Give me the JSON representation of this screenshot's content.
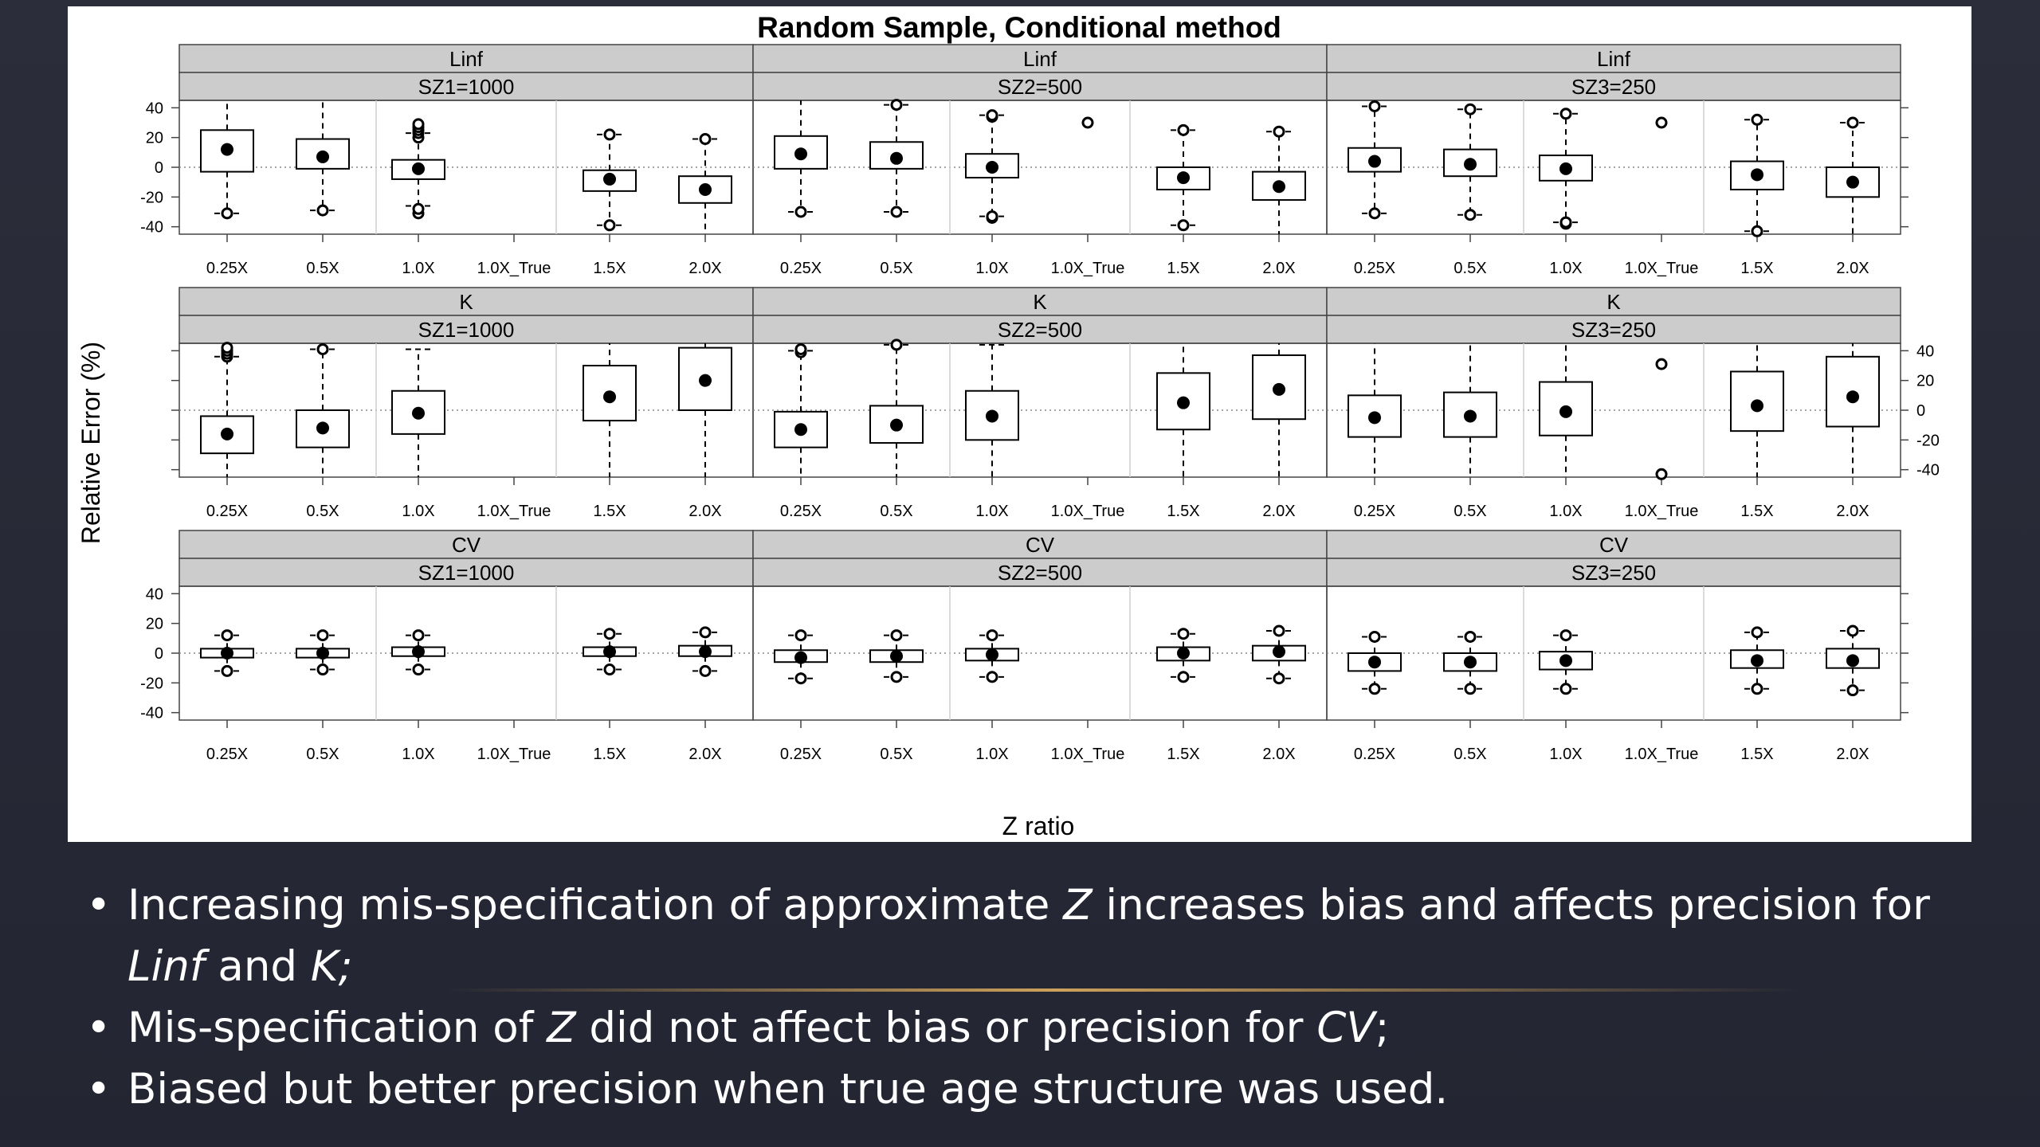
{
  "chart_data": {
    "type": "boxplot",
    "title": "Random Sample, Conditional method",
    "xlabel": "Z ratio",
    "ylabel": "Relative Error (%)",
    "ylim": [
      -45,
      45
    ],
    "yticks": [
      -40,
      -20,
      0,
      20,
      40
    ],
    "categories": [
      "0.25X",
      "0.5X",
      "1.0X",
      "1.0X_True",
      "1.5X",
      "2.0X"
    ],
    "box_fields": [
      "whisker_low",
      "q1",
      "median",
      "q3",
      "whisker_high"
    ],
    "panels": [
      {
        "parameter": "Linf",
        "sample_size": "SZ1=1000",
        "boxes": [
          {
            "category": "0.25X",
            "stats": [
              -31,
              -3,
              12,
              25,
              53
            ],
            "outliers": [
              -31
            ]
          },
          {
            "category": "0.5X",
            "stats": [
              -29,
              -1,
              7,
              19,
              50
            ],
            "outliers": [
              -29
            ]
          },
          {
            "category": "1.0X",
            "stats": [
              -26,
              -8,
              -1,
              5,
              23
            ],
            "outliers": [
              -31,
              -28,
              20,
              23,
              25,
              27,
              29
            ]
          },
          {
            "category": "1.0X_True",
            "stats": null,
            "outliers": []
          },
          {
            "category": "1.5X",
            "stats": [
              -39,
              -16,
              -8,
              -2,
              22
            ],
            "outliers": [
              -39,
              22
            ]
          },
          {
            "category": "2.0X",
            "stats": [
              -52,
              -24,
              -15,
              -6,
              19
            ],
            "outliers": [
              19
            ]
          }
        ]
      },
      {
        "parameter": "Linf",
        "sample_size": "SZ2=500",
        "boxes": [
          {
            "category": "0.25X",
            "stats": [
              -30,
              -1,
              9,
              21,
              52
            ],
            "outliers": [
              -30
            ]
          },
          {
            "category": "0.5X",
            "stats": [
              -30,
              -1,
              6,
              17,
              42
            ],
            "outliers": [
              -30,
              42
            ]
          },
          {
            "category": "1.0X",
            "stats": [
              -33,
              -7,
              0,
              9,
              35
            ],
            "outliers": [
              -34,
              -33,
              34,
              35
            ]
          },
          {
            "category": "1.0X_True",
            "stats": null,
            "outliers": [
              30
            ]
          },
          {
            "category": "1.5X",
            "stats": [
              -39,
              -15,
              -7,
              0,
              25
            ],
            "outliers": [
              -39,
              25
            ]
          },
          {
            "category": "2.0X",
            "stats": [
              -50,
              -22,
              -13,
              -3,
              24
            ],
            "outliers": [
              24
            ]
          }
        ]
      },
      {
        "parameter": "Linf",
        "sample_size": "SZ3=250",
        "boxes": [
          {
            "category": "0.25X",
            "stats": [
              -31,
              -3,
              4,
              13,
              41
            ],
            "outliers": [
              -31,
              41
            ]
          },
          {
            "category": "0.5X",
            "stats": [
              -32,
              -6,
              2,
              12,
              39
            ],
            "outliers": [
              -32,
              39
            ]
          },
          {
            "category": "1.0X",
            "stats": [
              -37,
              -9,
              -1,
              8,
              36
            ],
            "outliers": [
              -38,
              -37,
              36
            ]
          },
          {
            "category": "1.0X_True",
            "stats": null,
            "outliers": [
              30
            ]
          },
          {
            "category": "1.5X",
            "stats": [
              -43,
              -15,
              -5,
              4,
              32
            ],
            "outliers": [
              -43,
              32
            ]
          },
          {
            "category": "2.0X",
            "stats": [
              -50,
              -20,
              -10,
              0,
              30
            ],
            "outliers": [
              30
            ]
          }
        ]
      },
      {
        "parameter": "K",
        "sample_size": "SZ1=1000",
        "boxes": [
          {
            "category": "0.25X",
            "stats": [
              -55,
              -29,
              -16,
              -4,
              36
            ],
            "outliers": [
              36,
              38,
              40,
              42
            ]
          },
          {
            "category": "0.5X",
            "stats": [
              -55,
              -25,
              -12,
              0,
              41
            ],
            "outliers": [
              41
            ]
          },
          {
            "category": "1.0X",
            "stats": [
              -55,
              -16,
              -2,
              13,
              41
            ],
            "outliers": []
          },
          {
            "category": "1.5X",
            "stats": [
              -55,
              -7,
              9,
              30,
              55
            ],
            "outliers": []
          },
          {
            "category": "1.0X_True",
            "stats": null,
            "outliers": []
          },
          {
            "category": "2.0X",
            "stats": [
              -55,
              0,
              20,
              42,
              55
            ],
            "outliers": []
          }
        ]
      },
      {
        "parameter": "K",
        "sample_size": "SZ2=500",
        "boxes": [
          {
            "category": "0.25X",
            "stats": [
              -55,
              -25,
              -13,
              -1,
              40
            ],
            "outliers": [
              39,
              41
            ]
          },
          {
            "category": "0.5X",
            "stats": [
              -55,
              -22,
              -10,
              3,
              44
            ],
            "outliers": [
              44
            ]
          },
          {
            "category": "1.0X",
            "stats": [
              -55,
              -20,
              -4,
              13,
              44
            ],
            "outliers": []
          },
          {
            "category": "1.0X_True",
            "stats": null,
            "outliers": []
          },
          {
            "category": "1.5X",
            "stats": [
              -55,
              -13,
              5,
              25,
              55
            ],
            "outliers": []
          },
          {
            "category": "2.0X",
            "stats": [
              -55,
              -6,
              14,
              37,
              55
            ],
            "outliers": []
          }
        ]
      },
      {
        "parameter": "K",
        "sample_size": "SZ3=250",
        "boxes": [
          {
            "category": "0.25X",
            "stats": [
              -55,
              -18,
              -5,
              10,
              45
            ],
            "outliers": []
          },
          {
            "category": "0.5X",
            "stats": [
              -55,
              -18,
              -4,
              12,
              45
            ],
            "outliers": []
          },
          {
            "category": "1.0X",
            "stats": [
              -55,
              -17,
              -1,
              19,
              45
            ],
            "outliers": []
          },
          {
            "category": "1.0X_True",
            "stats": null,
            "outliers": [
              31,
              -43
            ]
          },
          {
            "category": "1.5X",
            "stats": [
              -55,
              -14,
              3,
              26,
              55
            ],
            "outliers": []
          },
          {
            "category": "2.0X",
            "stats": [
              -55,
              -11,
              9,
              36,
              55
            ],
            "outliers": []
          }
        ]
      },
      {
        "parameter": "CV",
        "sample_size": "SZ1=1000",
        "boxes": [
          {
            "category": "0.25X",
            "stats": [
              -12,
              -3,
              0,
              3,
              12
            ],
            "outliers": [
              -12,
              12
            ]
          },
          {
            "category": "0.5X",
            "stats": [
              -11,
              -3,
              0,
              3,
              12
            ],
            "outliers": [
              -11,
              12
            ]
          },
          {
            "category": "1.0X",
            "stats": [
              -11,
              -2,
              1,
              4,
              12
            ],
            "outliers": [
              -11,
              12
            ]
          },
          {
            "category": "1.0X_True",
            "stats": null,
            "outliers": []
          },
          {
            "category": "1.5X",
            "stats": [
              -11,
              -2,
              1,
              4,
              13
            ],
            "outliers": [
              -11,
              13
            ]
          },
          {
            "category": "2.0X",
            "stats": [
              -12,
              -2,
              1,
              5,
              14
            ],
            "outliers": [
              -12,
              14
            ]
          }
        ]
      },
      {
        "parameter": "CV",
        "sample_size": "SZ2=500",
        "boxes": [
          {
            "category": "0.25X",
            "stats": [
              -17,
              -6,
              -3,
              2,
              12
            ],
            "outliers": [
              -17,
              12
            ]
          },
          {
            "category": "0.5X",
            "stats": [
              -16,
              -6,
              -2,
              2,
              12
            ],
            "outliers": [
              -16,
              12
            ]
          },
          {
            "category": "1.0X",
            "stats": [
              -16,
              -5,
              -1,
              3,
              12
            ],
            "outliers": [
              -16,
              12
            ]
          },
          {
            "category": "1.0X_True",
            "stats": null,
            "outliers": []
          },
          {
            "category": "1.5X",
            "stats": [
              -16,
              -5,
              0,
              4,
              13
            ],
            "outliers": [
              -16,
              13
            ]
          },
          {
            "category": "2.0X",
            "stats": [
              -17,
              -5,
              1,
              5,
              15
            ],
            "outliers": [
              -17,
              15
            ]
          }
        ]
      },
      {
        "parameter": "CV",
        "sample_size": "SZ3=250",
        "boxes": [
          {
            "category": "0.25X",
            "stats": [
              -24,
              -12,
              -6,
              0,
              11
            ],
            "outliers": [
              -24,
              11
            ]
          },
          {
            "category": "0.5X",
            "stats": [
              -24,
              -12,
              -6,
              0,
              11
            ],
            "outliers": [
              -24,
              11
            ]
          },
          {
            "category": "1.0X",
            "stats": [
              -24,
              -11,
              -5,
              1,
              12
            ],
            "outliers": [
              -24,
              12
            ]
          },
          {
            "category": "1.0X_True",
            "stats": null,
            "outliers": []
          },
          {
            "category": "1.5X",
            "stats": [
              -24,
              -10,
              -5,
              2,
              14
            ],
            "outliers": [
              -24,
              14
            ]
          },
          {
            "category": "2.0X",
            "stats": [
              -25,
              -10,
              -5,
              3,
              15
            ],
            "outliers": [
              -25,
              15
            ]
          }
        ]
      }
    ]
  },
  "bullets": [
    {
      "parts": [
        {
          "t": "Increasing mis-specification of approximate "
        },
        {
          "t": "Z",
          "i": true
        },
        {
          "t": " increases bias and affects precision for "
        },
        {
          "t": "Linf",
          "i": true
        },
        {
          "t": " and "
        },
        {
          "t": "K;",
          "i": true
        }
      ]
    },
    {
      "parts": [
        {
          "t": "Mis-specification of "
        },
        {
          "t": "Z",
          "i": true
        },
        {
          "t": " did not affect bias or precision for "
        },
        {
          "t": "CV",
          "i": true
        },
        {
          "t": ";"
        }
      ]
    },
    {
      "parts": [
        {
          "t": "Biased but better precision when true age structure was used."
        }
      ]
    }
  ],
  "colors": {
    "background": "#262836",
    "strip": "#cccccc",
    "accent_line": "#d6a85c"
  }
}
